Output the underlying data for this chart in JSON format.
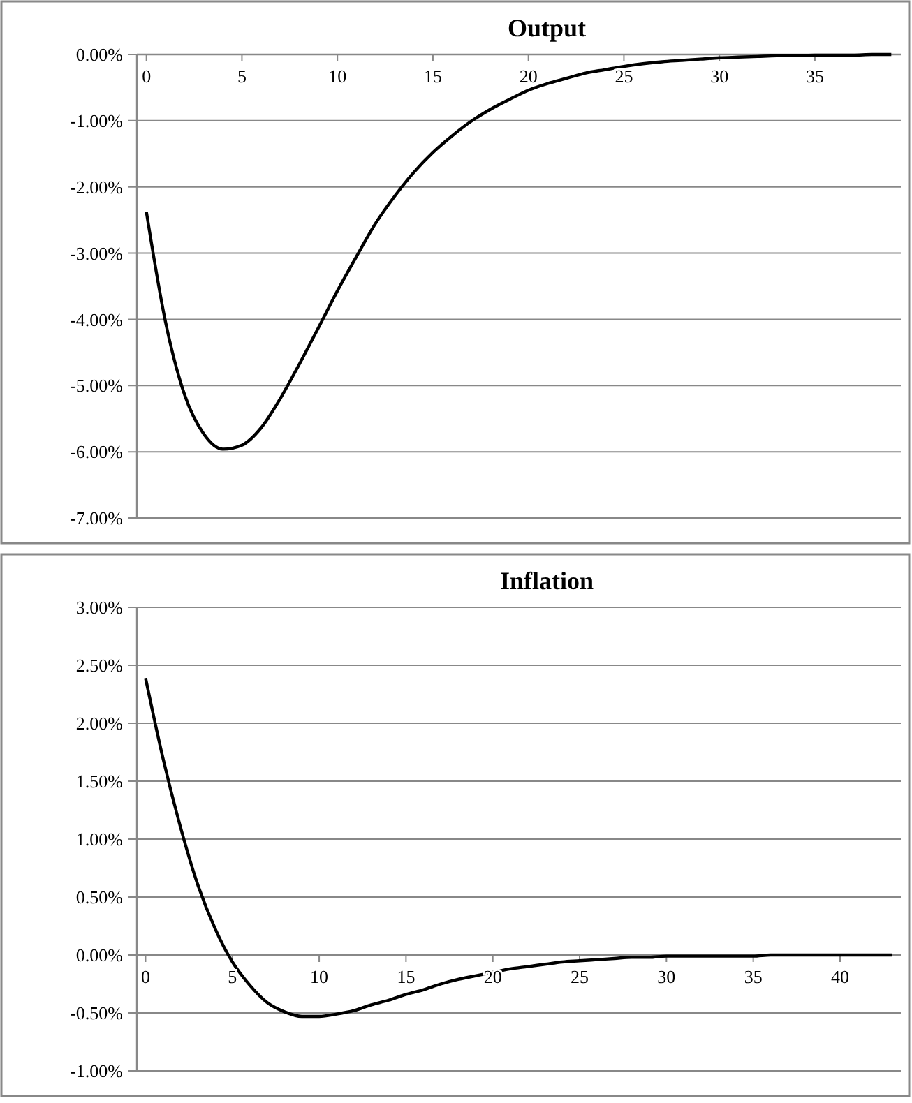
{
  "chart_data": [
    {
      "type": "line",
      "title": "Output",
      "grid": "y",
      "marker": "none",
      "line_style": "solid",
      "x": [
        0,
        1,
        2,
        3,
        4,
        5,
        6,
        7,
        8,
        9,
        10,
        11,
        12,
        13,
        14,
        15,
        16,
        17,
        18,
        19,
        20,
        21,
        22,
        23,
        24,
        25,
        26,
        27,
        28,
        29,
        30,
        31,
        32,
        33,
        34,
        35,
        36,
        37,
        38,
        39
      ],
      "series": [
        {
          "color": "#000000",
          "values": [
            -2.38,
            -4.04,
            -5.14,
            -5.73,
            -5.96,
            -5.9,
            -5.64,
            -5.2,
            -4.68,
            -4.13,
            -3.57,
            -3.05,
            -2.55,
            -2.14,
            -1.78,
            -1.48,
            -1.23,
            -1.01,
            -0.83,
            -0.68,
            -0.54,
            -0.44,
            -0.36,
            -0.28,
            -0.23,
            -0.18,
            -0.14,
            -0.11,
            -0.09,
            -0.07,
            -0.05,
            -0.04,
            -0.03,
            -0.02,
            -0.02,
            -0.01,
            -0.01,
            -0.01,
            0,
            0
          ]
        }
      ],
      "xlim": [
        -0.5,
        39.5
      ],
      "xticks": [
        0,
        5,
        10,
        15,
        20,
        25,
        30,
        35
      ],
      "ylim": [
        -7,
        0
      ],
      "yticks": [
        {
          "value": 0,
          "label": "0.00%"
        },
        {
          "value": -1,
          "label": "-1.00%"
        },
        {
          "value": -2,
          "label": "-2.00%"
        },
        {
          "value": -3,
          "label": "-3.00%"
        },
        {
          "value": -4,
          "label": "-4.00%"
        },
        {
          "value": -5,
          "label": "-5.00%"
        },
        {
          "value": -6,
          "label": "-6.00%"
        },
        {
          "value": -7,
          "label": "-7.00%"
        }
      ]
    },
    {
      "type": "line",
      "title": "Inflation",
      "grid": "y",
      "marker": "none",
      "line_style": "solid",
      "x": [
        0,
        1,
        2,
        3,
        4,
        5,
        6,
        7,
        8,
        9,
        10,
        11,
        12,
        13,
        14,
        15,
        16,
        17,
        18,
        19,
        20,
        21,
        22,
        23,
        24,
        25,
        26,
        27,
        28,
        29,
        30,
        31,
        32,
        33,
        34,
        35,
        36,
        37,
        38,
        39,
        40,
        41,
        42,
        43
      ],
      "series": [
        {
          "color": "#000000",
          "values": [
            2.39,
            1.7,
            1.11,
            0.61,
            0.23,
            -0.06,
            -0.26,
            -0.41,
            -0.49,
            -0.53,
            -0.53,
            -0.51,
            -0.48,
            -0.43,
            -0.39,
            -0.34,
            -0.3,
            -0.25,
            -0.21,
            -0.18,
            -0.15,
            -0.12,
            -0.1,
            -0.08,
            -0.06,
            -0.05,
            -0.04,
            -0.03,
            -0.02,
            -0.02,
            -0.01,
            -0.01,
            -0.01,
            -0.01,
            -0.01,
            -0.01,
            0,
            0,
            0,
            0,
            0,
            0,
            0,
            0
          ]
        }
      ],
      "xlim": [
        -0.5,
        43.5
      ],
      "xticks": [
        0,
        5,
        10,
        15,
        20,
        25,
        30,
        35,
        40
      ],
      "ylim": [
        -1,
        3
      ],
      "yticks": [
        {
          "value": 3,
          "label": "3.00%"
        },
        {
          "value": 2.5,
          "label": "2.50%"
        },
        {
          "value": 2,
          "label": "2.00%"
        },
        {
          "value": 1.5,
          "label": "1.50%"
        },
        {
          "value": 1,
          "label": "1.00%"
        },
        {
          "value": 0.5,
          "label": "0.50%"
        },
        {
          "value": 0,
          "label": "0.00%"
        },
        {
          "value": -0.5,
          "label": "-0.50%"
        },
        {
          "value": -1,
          "label": "-1.00%"
        }
      ]
    }
  ]
}
